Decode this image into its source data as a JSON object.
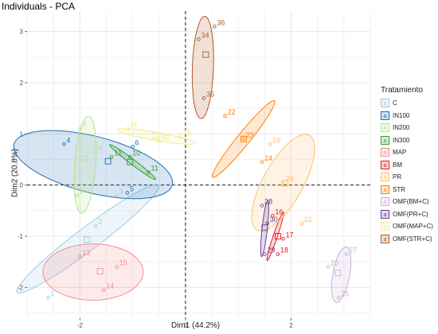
{
  "chart_data": {
    "type": "scatter",
    "title": "Individuals - PCA",
    "xlabel": "Dim1 (44.2%)",
    "ylabel": "Dim2 (20.8%)",
    "xlim": [
      -3.0,
      3.5
    ],
    "ylim": [
      -2.6,
      3.4
    ],
    "x_ticks": [
      -2,
      0,
      2
    ],
    "y_ticks": [
      -2,
      -1,
      0,
      1,
      2,
      3
    ],
    "grid": true,
    "legend_position": "right",
    "legend_title": "Tratamiento",
    "series": [
      {
        "name": "C",
        "color": "#9ec9e2",
        "points": [
          {
            "label": "1",
            "x": -2.6,
            "y": -2.2
          },
          {
            "label": "2",
            "x": -1.7,
            "y": -0.8
          },
          {
            "label": "3",
            "x": -1.3,
            "y": -0.2
          }
        ],
        "ellipse": {
          "cx": -1.85,
          "cy": -1.05,
          "rx": 1.7,
          "ry": 0.22,
          "angle": 38
        }
      },
      {
        "name": "IN100",
        "color": "#1f70b5",
        "points": [
          {
            "label": "4",
            "x": -2.3,
            "y": 0.8
          },
          {
            "label": "5",
            "x": -1.1,
            "y": -0.15
          },
          {
            "label": "6",
            "x": -1.0,
            "y": 0.75
          }
        ],
        "ellipse": {
          "cx": -1.75,
          "cy": 0.4,
          "rx": 1.55,
          "ry": 0.55,
          "angle": -15
        }
      },
      {
        "name": "IN200",
        "color": "#b8e28a",
        "points": [
          {
            "label": "7",
            "x": -2.0,
            "y": 1.1
          },
          {
            "label": "8",
            "x": -1.7,
            "y": 0.65
          },
          {
            "label": "9",
            "x": -2.05,
            "y": -0.2
          }
        ],
        "ellipse": {
          "cx": -1.9,
          "cy": 0.4,
          "rx": 0.95,
          "ry": 0.2,
          "angle": 86
        }
      },
      {
        "name": "IN300",
        "color": "#33a02c",
        "points": [
          {
            "label": "10",
            "x": -1.05,
            "y": 0.55
          },
          {
            "label": "11",
            "x": -0.7,
            "y": 0.25
          },
          {
            "label": "12",
            "x": -1.4,
            "y": 0.55
          }
        ],
        "ellipse": {
          "cx": -1.0,
          "cy": 0.45,
          "rx": 0.55,
          "ry": 0.05,
          "angle": -38
        }
      },
      {
        "name": "MAP",
        "color": "#f28e8e",
        "points": [
          {
            "label": "13",
            "x": -2.0,
            "y": -1.4
          },
          {
            "label": "14",
            "x": -1.55,
            "y": -2.05
          },
          {
            "label": "15",
            "x": -1.3,
            "y": -1.6
          }
        ],
        "ellipse": {
          "cx": -1.75,
          "cy": -1.7,
          "rx": 0.95,
          "ry": 0.55,
          "angle": 0
        }
      },
      {
        "name": "BM",
        "color": "#e31a1c",
        "points": [
          {
            "label": "16",
            "x": 1.65,
            "y": -0.6
          },
          {
            "label": "17",
            "x": 1.85,
            "y": -1.05
          },
          {
            "label": "18",
            "x": 1.75,
            "y": -1.35
          }
        ],
        "ellipse": {
          "cx": 1.7,
          "cy": -1.0,
          "rx": 0.5,
          "ry": 0.04,
          "angle": 72
        }
      },
      {
        "name": "PR",
        "color": "#fdbf6f",
        "points": [
          {
            "label": "19",
            "x": 1.6,
            "y": 0.8
          },
          {
            "label": "20",
            "x": 1.85,
            "y": 0.05
          },
          {
            "label": "21",
            "x": 2.2,
            "y": -0.75
          }
        ],
        "ellipse": {
          "cx": 1.85,
          "cy": 0.05,
          "rx": 1.05,
          "ry": 0.38,
          "angle": 62
        }
      },
      {
        "name": "STR",
        "color": "#ff7f00",
        "points": [
          {
            "label": "22",
            "x": 0.75,
            "y": 1.35
          },
          {
            "label": "23",
            "x": 1.1,
            "y": 0.9
          },
          {
            "label": "24",
            "x": 1.45,
            "y": 0.45
          }
        ],
        "ellipse": {
          "cx": 1.1,
          "cy": 0.9,
          "rx": 0.95,
          "ry": 0.12,
          "angle": 52
        }
      },
      {
        "name": "OMF(BM+C)",
        "color": "#cab2d6",
        "points": [
          {
            "label": "25",
            "x": 2.9,
            "y": -2.2
          },
          {
            "label": "26",
            "x": 2.7,
            "y": -1.6
          },
          {
            "label": "27",
            "x": 3.05,
            "y": -1.35
          }
        ],
        "ellipse": {
          "cx": 2.95,
          "cy": -1.75,
          "rx": 0.55,
          "ry": 0.16,
          "angle": 80
        }
      },
      {
        "name": "OMF(PR+C)",
        "color": "#6a3d9a",
        "points": [
          {
            "label": "28",
            "x": 1.45,
            "y": -0.4
          },
          {
            "label": "29",
            "x": 1.5,
            "y": -1.35
          },
          {
            "label": "30",
            "x": 1.55,
            "y": -0.75
          }
        ],
        "ellipse": {
          "cx": 1.5,
          "cy": -0.85,
          "rx": 0.55,
          "ry": 0.05,
          "angle": 84
        }
      },
      {
        "name": "OMF(MAP+C)",
        "color": "#f0ec8a",
        "points": [
          {
            "label": "31",
            "x": -1.1,
            "y": 1.1
          },
          {
            "label": "32",
            "x": -0.5,
            "y": 0.85
          },
          {
            "label": "33",
            "x": -0.1,
            "y": 0.95
          }
        ],
        "ellipse": {
          "cx": -0.55,
          "cy": 0.95,
          "rx": 0.75,
          "ry": 0.08,
          "angle": -10
        }
      },
      {
        "name": "OMF(STR+C)",
        "color": "#b15928",
        "points": [
          {
            "label": "34",
            "x": 0.25,
            "y": 2.85
          },
          {
            "label": "35",
            "x": 0.35,
            "y": 1.7
          },
          {
            "label": "36",
            "x": 0.55,
            "y": 3.1
          }
        ],
        "ellipse": {
          "cx": 0.33,
          "cy": 2.3,
          "rx": 1.0,
          "ry": 0.2,
          "angle": 88
        }
      }
    ]
  }
}
